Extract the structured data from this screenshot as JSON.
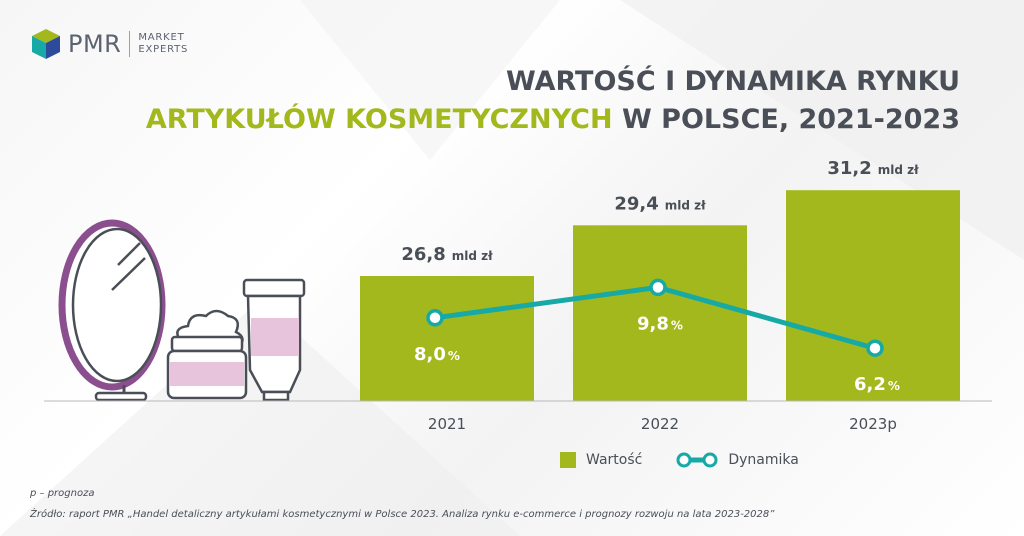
{
  "logo": {
    "brand": "PMR",
    "tagline_line1": "MARKET",
    "tagline_line2": "EXPERTS"
  },
  "title": {
    "line1": "WARTOŚĆ I DYNAMIKA RYNKU",
    "line2_accent": "ARTYKUŁÓW KOSMETYCZNYCH",
    "line2_rest": "W POLSCE, 2021-2023"
  },
  "colors": {
    "bar": "#a3b81c",
    "line": "#17a9a6",
    "text": "#4a4f57",
    "accent": "#a3b81c"
  },
  "chart_data": {
    "type": "bar",
    "categories": [
      "2021",
      "2022",
      "2023p"
    ],
    "series": [
      {
        "name": "Wartość",
        "values": [
          26.8,
          29.4,
          31.2
        ],
        "labels": [
          "26,8",
          "29,4",
          "31,2"
        ],
        "unit": "mld zł"
      },
      {
        "name": "Dynamika",
        "type": "line",
        "values": [
          8.0,
          9.8,
          6.2
        ],
        "labels": [
          "8,0",
          "9,8",
          "6,2"
        ],
        "unit": "%"
      }
    ],
    "legend_position": "bottom"
  },
  "legend": {
    "value_label": "Wartość",
    "growth_label": "Dynamika"
  },
  "footnote": {
    "note": "p – prognoza",
    "source": "Źródło: raport PMR „Handel detaliczny artykułami kosmetycznymi w Polsce 2023. Analiza rynku e-commerce i prognozy rozwoju na lata 2023-2028”"
  },
  "icons": [
    "pmr-logo-icon",
    "mirror-icon",
    "cream-jar-icon",
    "cosmetic-tube-icon"
  ]
}
